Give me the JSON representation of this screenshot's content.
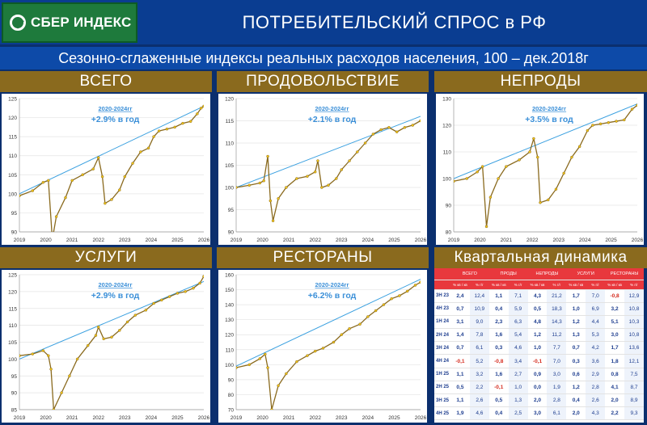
{
  "header": {
    "logo_text": "СБЕР ИНДЕКС",
    "title": "ПОТРЕБИТЕЛЬСКИЙ СПРОС в РФ",
    "subtitle": "Сезонно-сглаженные индексы реальных расходов населения, 100 – дек.2018г"
  },
  "colors": {
    "data_line": "#8a6a1e",
    "data_marker": "#f0c419",
    "trend_line": "#3aa0e0",
    "annotation": "#3a8fd8",
    "band": "#8a6a1e",
    "header_bg": "#0a3d91",
    "table_header": "#e8383d",
    "negative": "#d52b1e"
  },
  "chart_data": [
    {
      "type": "line",
      "title": "ВСЕГО",
      "annotation_period": "2020-2024гг",
      "annotation_rate": "+2.9% в год",
      "ylim": [
        90,
        125
      ],
      "yticks": [
        90,
        95,
        100,
        105,
        110,
        115,
        120,
        125
      ],
      "xticks": [
        "2019",
        "2020",
        "2021",
        "2022",
        "2023",
        "2024",
        "2025",
        "2026"
      ],
      "trend": [
        [
          2019.0,
          100.0
        ],
        [
          2026.0,
          123.0
        ]
      ],
      "series": [
        {
          "points": [
            [
              2019.0,
              99.5
            ],
            [
              2019.5,
              100.8
            ],
            [
              2019.9,
              103.0
            ],
            [
              2020.1,
              103.5
            ],
            [
              2020.25,
              88.0
            ],
            [
              2020.4,
              94.0
            ],
            [
              2020.75,
              99.0
            ],
            [
              2021.0,
              103.5
            ],
            [
              2021.4,
              105.0
            ],
            [
              2021.8,
              106.5
            ],
            [
              2022.0,
              109.5
            ],
            [
              2022.15,
              104.5
            ],
            [
              2022.25,
              97.5
            ],
            [
              2022.5,
              98.5
            ],
            [
              2022.8,
              101.0
            ],
            [
              2023.0,
              104.5
            ],
            [
              2023.3,
              108.0
            ],
            [
              2023.6,
              111.0
            ],
            [
              2023.9,
              112.0
            ],
            [
              2024.1,
              115.0
            ],
            [
              2024.3,
              116.5
            ],
            [
              2024.6,
              117.0
            ],
            [
              2024.9,
              117.5
            ],
            [
              2025.2,
              118.5
            ],
            [
              2025.5,
              119.0
            ],
            [
              2025.75,
              121.0
            ],
            [
              2025.9,
              122.5
            ],
            [
              2026.0,
              123.0
            ]
          ]
        }
      ]
    },
    {
      "type": "line",
      "title": "ПРОДОВОЛЬСТВИЕ",
      "annotation_period": "2020-2024гг",
      "annotation_rate": "+2.1% в год",
      "ylim": [
        90,
        120
      ],
      "yticks": [
        90,
        95,
        100,
        105,
        110,
        115,
        120
      ],
      "xticks": [
        "2019",
        "2020",
        "2021",
        "2022",
        "2023",
        "2024",
        "2025",
        "2026"
      ],
      "trend": [
        [
          2019.0,
          100.0
        ],
        [
          2026.0,
          116.0
        ]
      ],
      "series": [
        {
          "points": [
            [
              2019.0,
              100.0
            ],
            [
              2019.5,
              100.5
            ],
            [
              2019.9,
              101.0
            ],
            [
              2020.05,
              101.5
            ],
            [
              2020.2,
              107.0
            ],
            [
              2020.3,
              97.0
            ],
            [
              2020.4,
              92.5
            ],
            [
              2020.6,
              97.5
            ],
            [
              2020.9,
              100.0
            ],
            [
              2021.3,
              102.0
            ],
            [
              2021.7,
              102.5
            ],
            [
              2022.0,
              103.5
            ],
            [
              2022.1,
              106.0
            ],
            [
              2022.25,
              100.0
            ],
            [
              2022.5,
              100.5
            ],
            [
              2022.8,
              102.0
            ],
            [
              2023.0,
              104.0
            ],
            [
              2023.3,
              106.0
            ],
            [
              2023.6,
              108.0
            ],
            [
              2023.9,
              110.0
            ],
            [
              2024.2,
              112.0
            ],
            [
              2024.5,
              113.0
            ],
            [
              2024.8,
              113.5
            ],
            [
              2025.1,
              112.5
            ],
            [
              2025.4,
              113.5
            ],
            [
              2025.7,
              114.0
            ],
            [
              2026.0,
              115.0
            ]
          ]
        }
      ]
    },
    {
      "type": "line",
      "title": "НЕПРОДЫ",
      "annotation_period": "2020-2024гг",
      "annotation_rate": "+3.5% в год",
      "ylim": [
        80,
        130
      ],
      "yticks": [
        80,
        90,
        100,
        110,
        120,
        130
      ],
      "xticks": [
        "2019",
        "2020",
        "2021",
        "2022",
        "2023",
        "2024",
        "2025",
        "2026"
      ],
      "trend": [
        [
          2019.0,
          100.0
        ],
        [
          2026.0,
          128.0
        ]
      ],
      "series": [
        {
          "points": [
            [
              2019.0,
              99.0
            ],
            [
              2019.5,
              100.0
            ],
            [
              2019.9,
              102.5
            ],
            [
              2020.1,
              104.5
            ],
            [
              2020.25,
              82.0
            ],
            [
              2020.4,
              93.0
            ],
            [
              2020.7,
              100.0
            ],
            [
              2021.0,
              104.5
            ],
            [
              2021.5,
              107.0
            ],
            [
              2021.9,
              110.0
            ],
            [
              2022.05,
              115.0
            ],
            [
              2022.2,
              108.0
            ],
            [
              2022.3,
              91.0
            ],
            [
              2022.6,
              92.0
            ],
            [
              2022.9,
              96.0
            ],
            [
              2023.2,
              102.0
            ],
            [
              2023.5,
              108.0
            ],
            [
              2023.8,
              112.0
            ],
            [
              2024.1,
              118.0
            ],
            [
              2024.3,
              120.0
            ],
            [
              2024.6,
              120.5
            ],
            [
              2024.9,
              121.0
            ],
            [
              2025.2,
              121.5
            ],
            [
              2025.5,
              122.0
            ],
            [
              2025.8,
              126.0
            ],
            [
              2026.0,
              127.5
            ]
          ]
        }
      ]
    },
    {
      "type": "line",
      "title": "УСЛУГИ",
      "annotation_period": "2020-2024гг",
      "annotation_rate": "+2.9% в год",
      "ylim": [
        85,
        125
      ],
      "yticks": [
        85,
        90,
        95,
        100,
        105,
        110,
        115,
        120,
        125
      ],
      "xticks": [
        "2019",
        "2020",
        "2021",
        "2022",
        "2023",
        "2024",
        "2025",
        "2026"
      ],
      "trend": [
        [
          2019.0,
          100.0
        ],
        [
          2026.0,
          123.0
        ]
      ],
      "series": [
        {
          "points": [
            [
              2019.0,
              101.0
            ],
            [
              2019.5,
              101.5
            ],
            [
              2019.9,
              102.5
            ],
            [
              2020.1,
              101.0
            ],
            [
              2020.2,
              97.0
            ],
            [
              2020.3,
              85.0
            ],
            [
              2020.6,
              90.0
            ],
            [
              2020.9,
              95.0
            ],
            [
              2021.2,
              100.0
            ],
            [
              2021.6,
              104.0
            ],
            [
              2021.9,
              107.0
            ],
            [
              2022.0,
              109.5
            ],
            [
              2022.2,
              106.0
            ],
            [
              2022.5,
              106.5
            ],
            [
              2022.8,
              108.5
            ],
            [
              2023.1,
              111.0
            ],
            [
              2023.4,
              113.0
            ],
            [
              2023.8,
              114.5
            ],
            [
              2024.1,
              116.5
            ],
            [
              2024.4,
              117.5
            ],
            [
              2024.7,
              118.5
            ],
            [
              2025.0,
              119.5
            ],
            [
              2025.3,
              120.0
            ],
            [
              2025.6,
              121.0
            ],
            [
              2025.85,
              122.5
            ],
            [
              2026.0,
              124.5
            ]
          ]
        }
      ]
    },
    {
      "type": "line",
      "title": "РЕСТОРАНЫ",
      "annotation_period": "2020-2024гг",
      "annotation_rate": "+6.2% в год",
      "ylim": [
        70,
        160
      ],
      "yticks": [
        70,
        80,
        90,
        100,
        110,
        120,
        130,
        140,
        150,
        160
      ],
      "xticks": [
        "2019",
        "2020",
        "2021",
        "2022",
        "2023",
        "2024",
        "2025",
        "2026"
      ],
      "trend": [
        [
          2019.0,
          99.0
        ],
        [
          2026.0,
          157.0
        ]
      ],
      "series": [
        {
          "points": [
            [
              2019.0,
              98.0
            ],
            [
              2019.5,
              100.0
            ],
            [
              2019.9,
              104.0
            ],
            [
              2020.1,
              107.0
            ],
            [
              2020.2,
              98.0
            ],
            [
              2020.35,
              70.0
            ],
            [
              2020.6,
              86.0
            ],
            [
              2020.9,
              94.0
            ],
            [
              2021.3,
              102.0
            ],
            [
              2021.7,
              106.0
            ],
            [
              2022.0,
              109.0
            ],
            [
              2022.3,
              111.0
            ],
            [
              2022.7,
              115.0
            ],
            [
              2023.0,
              120.0
            ],
            [
              2023.3,
              124.0
            ],
            [
              2023.7,
              127.0
            ],
            [
              2024.0,
              132.0
            ],
            [
              2024.3,
              136.0
            ],
            [
              2024.6,
              140.0
            ],
            [
              2024.9,
              144.0
            ],
            [
              2025.2,
              146.0
            ],
            [
              2025.5,
              149.0
            ],
            [
              2025.8,
              153.0
            ],
            [
              2026.0,
              155.0
            ]
          ]
        }
      ]
    },
    {
      "type": "table",
      "title": "Квартальная динамика",
      "groups": [
        "ВСЕГО",
        "ПРОДЫ",
        "НЕПРОДЫ",
        "УСЛУГИ",
        "РЕСТОРАНЫ"
      ],
      "subheaders": [
        "% кв / кв",
        "% г/г"
      ],
      "rows": [
        {
          "q": "3Н 23",
          "v": [
            "2,4",
            "12,4",
            "1,1",
            "7,1",
            "4,3",
            "21,2",
            "1,7",
            "7,0",
            "-0,8",
            "12,9"
          ]
        },
        {
          "q": "4Н 23",
          "v": [
            "0,7",
            "10,9",
            "0,4",
            "5,9",
            "0,5",
            "18,3",
            "1,0",
            "6,9",
            "3,2",
            "10,8"
          ]
        },
        {
          "q": "1Н 24",
          "v": [
            "3,1",
            "9,0",
            "2,3",
            "6,3",
            "4,8",
            "14,3",
            "1,2",
            "4,4",
            "5,1",
            "10,3"
          ]
        },
        {
          "q": "2Н 24",
          "v": [
            "1,4",
            "7,8",
            "1,6",
            "5,4",
            "1,2",
            "11,2",
            "1,3",
            "5,3",
            "3,0",
            "10,8"
          ]
        },
        {
          "q": "3Н 24",
          "v": [
            "0,7",
            "6,1",
            "0,3",
            "4,6",
            "1,0",
            "7,7",
            "0,7",
            "4,2",
            "1,7",
            "13,6"
          ]
        },
        {
          "q": "4Н 24",
          "v": [
            "-0,1",
            "5,2",
            "-0,8",
            "3,4",
            "-0,1",
            "7,0",
            "0,3",
            "3,6",
            "1,8",
            "12,1"
          ]
        },
        {
          "q": "1Н 25",
          "v": [
            "1,1",
            "3,2",
            "1,6",
            "2,7",
            "0,9",
            "3,0",
            "0,6",
            "2,9",
            "0,8",
            "7,5"
          ]
        },
        {
          "q": "2Н 25",
          "v": [
            "0,5",
            "2,2",
            "-0,1",
            "1,0",
            "0,0",
            "1,9",
            "1,2",
            "2,8",
            "4,1",
            "8,7"
          ]
        },
        {
          "q": "3Н 25",
          "v": [
            "1,1",
            "2,6",
            "0,5",
            "1,3",
            "2,0",
            "2,8",
            "0,4",
            "2,6",
            "2,0",
            "8,9"
          ]
        },
        {
          "q": "4Н 25",
          "v": [
            "1,9",
            "4,6",
            "0,4",
            "2,5",
            "3,0",
            "6,1",
            "2,0",
            "4,3",
            "2,2",
            "9,3"
          ]
        }
      ]
    }
  ]
}
